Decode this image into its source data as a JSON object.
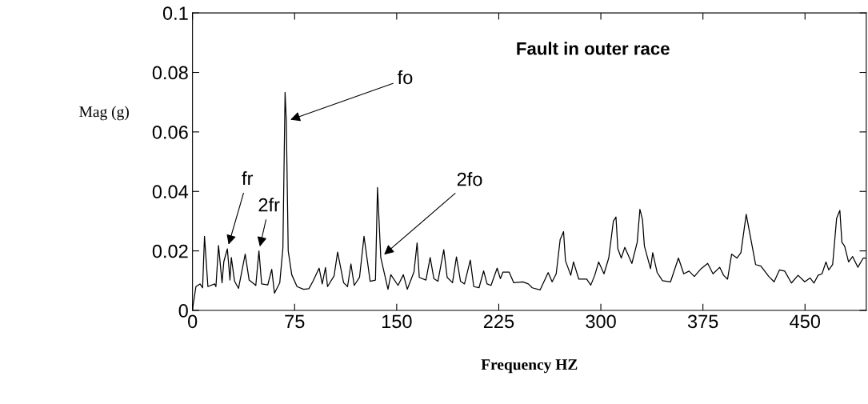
{
  "chart_data": {
    "type": "line",
    "title": "Fault in outer race",
    "xlabel": "Frequency HZ",
    "ylabel": "Mag (g)",
    "xlim": [
      0,
      495
    ],
    "ylim": [
      0,
      0.1
    ],
    "xticks": [
      0,
      75,
      150,
      225,
      300,
      375,
      450
    ],
    "yticks": [
      0,
      0.02,
      0.04,
      0.06,
      0.08,
      0.1
    ],
    "grid": false,
    "legend": false,
    "marker": "none",
    "line_style": "solid",
    "annotations": [
      {
        "text": "fr",
        "x": 25.6,
        "y": 0.0207
      },
      {
        "text": "2fr",
        "x": 48.8,
        "y": 0.02
      },
      {
        "text": "fo",
        "x": 68.9,
        "y": 0.0636
      },
      {
        "text": "2fo",
        "x": 138.3,
        "y": 0.0178
      }
    ],
    "series": [
      {
        "color": "#000000",
        "x": [
          0,
          2.5,
          5.5,
          7.4,
          8.8,
          11.3,
          16.2,
          17.2,
          19.1,
          21.7,
          23,
          25.6,
          27.5,
          28.5,
          30.9,
          33.8,
          38.7,
          41.6,
          46.5,
          48.8,
          50.8,
          55.3,
          58.2,
          60.2,
          64.1,
          66.4,
          68,
          68.9,
          70.3,
          72.9,
          76.8,
          81.6,
          85.5,
          88.5,
          93,
          95.3,
          97.7,
          99.2,
          104,
          106.6,
          111,
          113.9,
          116.4,
          118.8,
          122.7,
          126,
          130.5,
          134.4,
          135.9,
          138.3,
          143.6,
          145.7,
          151,
          154.9,
          157.8,
          162.7,
          165,
          166.6,
          171.5,
          174.6,
          177.3,
          180.3,
          184.6,
          187.1,
          191,
          193.9,
          196.9,
          199.8,
          204.1,
          206.6,
          210.5,
          213.9,
          216.4,
          219.3,
          223.8,
          226.2,
          228.1,
          232.6,
          236,
          242.7,
          246.7,
          249.6,
          255.4,
          261.3,
          264.2,
          267.2,
          270.1,
          272.6,
          274,
          277.9,
          279.9,
          283.8,
          289.6,
          292.6,
          295.5,
          298.4,
          302.3,
          305.8,
          309.2,
          311.1,
          312.5,
          315,
          317.6,
          322.8,
          326.7,
          328.7,
          330.6,
          332,
          336.5,
          338.1,
          341.4,
          345.3,
          351.2,
          357,
          360.9,
          364.8,
          368.7,
          373.6,
          378.5,
          382.4,
          387.3,
          390.2,
          393.1,
          396.1,
          400,
          402.9,
          406.8,
          413.7,
          417.6,
          423.4,
          427.3,
          431.2,
          435.1,
          440,
          444.9,
          449.8,
          453.7,
          456.6,
          459.6,
          462.5,
          465.4,
          467.4,
          470.3,
          473.2,
          475.6,
          477.1,
          479.1,
          482,
          485,
          488.8,
          492.8,
          494.7
        ],
        "values": [
          0.0004,
          0.008,
          0.0089,
          0.0076,
          0.0249,
          0.008,
          0.0089,
          0.008,
          0.0218,
          0.0093,
          0.0164,
          0.0207,
          0.0102,
          0.0178,
          0.0098,
          0.0074,
          0.0189,
          0.0102,
          0.0084,
          0.02,
          0.0089,
          0.0086,
          0.0138,
          0.0058,
          0.0093,
          0.0209,
          0.0733,
          0.0636,
          0.02,
          0.012,
          0.008,
          0.0071,
          0.0073,
          0.0098,
          0.0142,
          0.0089,
          0.0144,
          0.008,
          0.0116,
          0.0196,
          0.0093,
          0.008,
          0.0156,
          0.0084,
          0.0111,
          0.0249,
          0.0098,
          0.0102,
          0.0413,
          0.0178,
          0.0071,
          0.012,
          0.0084,
          0.012,
          0.0071,
          0.0129,
          0.0227,
          0.0111,
          0.0102,
          0.0178,
          0.0107,
          0.0098,
          0.0204,
          0.0111,
          0.0093,
          0.018,
          0.0098,
          0.0089,
          0.0169,
          0.008,
          0.0076,
          0.0133,
          0.0089,
          0.0084,
          0.0142,
          0.0107,
          0.0129,
          0.0129,
          0.0093,
          0.0096,
          0.0089,
          0.0076,
          0.0069,
          0.0127,
          0.0096,
          0.0123,
          0.0238,
          0.0265,
          0.0167,
          0.0118,
          0.0163,
          0.0105,
          0.0105,
          0.0085,
          0.0118,
          0.0163,
          0.0123,
          0.0176,
          0.03,
          0.0314,
          0.0207,
          0.0176,
          0.0212,
          0.0158,
          0.0229,
          0.034,
          0.0305,
          0.0216,
          0.014,
          0.0194,
          0.0127,
          0.01,
          0.0096,
          0.0176,
          0.0123,
          0.0132,
          0.0114,
          0.014,
          0.0158,
          0.0123,
          0.0145,
          0.0118,
          0.0105,
          0.0189,
          0.0176,
          0.0194,
          0.0323,
          0.0154,
          0.0149,
          0.0114,
          0.0096,
          0.0136,
          0.0132,
          0.0092,
          0.0118,
          0.0096,
          0.0109,
          0.0092,
          0.0118,
          0.0123,
          0.0163,
          0.0136,
          0.0154,
          0.0309,
          0.0336,
          0.0229,
          0.0216,
          0.0163,
          0.0181,
          0.0145,
          0.0176,
          0.0176
        ]
      }
    ]
  }
}
